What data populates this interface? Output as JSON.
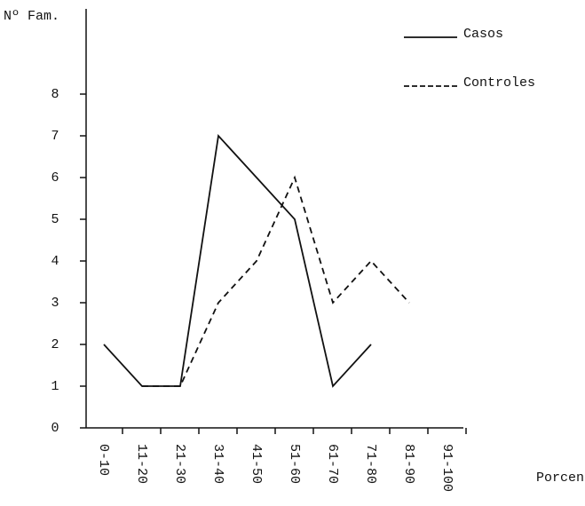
{
  "chart_data": {
    "type": "line",
    "ylabel": "Nº Fam.",
    "xlabel": "Porcentaje",
    "categories": [
      "0-10",
      "11-20",
      "21-30",
      "31-40",
      "41-50",
      "51-60",
      "61-70",
      "71-80",
      "81-90",
      "91-100"
    ],
    "series": [
      {
        "name": "Casos",
        "color": "#111111",
        "dash": "solid",
        "values": [
          2,
          1,
          1,
          7,
          6,
          5,
          1,
          2,
          null,
          null
        ]
      },
      {
        "name": "Controles",
        "color": "#111111",
        "dash": "dashed",
        "values": [
          null,
          1,
          1,
          3,
          4,
          6,
          3,
          4,
          3,
          null
        ]
      }
    ],
    "ylim": [
      0,
      10
    ],
    "yticks": [
      0,
      1,
      2,
      3,
      4,
      5,
      6,
      7,
      8
    ],
    "grid": false,
    "legend": "upper right"
  }
}
